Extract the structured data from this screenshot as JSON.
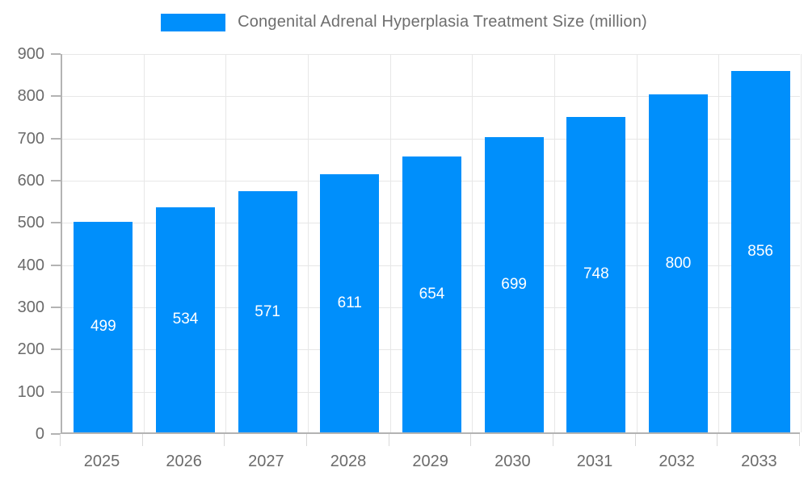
{
  "legend": {
    "label": "Congenital Adrenal Hyperplasia Treatment Size (million)"
  },
  "chart_data": {
    "type": "bar",
    "title": "Congenital Adrenal Hyperplasia Treatment Size (million)",
    "categories": [
      "2025",
      "2026",
      "2027",
      "2028",
      "2029",
      "2030",
      "2031",
      "2032",
      "2033"
    ],
    "values": [
      499,
      534,
      571,
      611,
      654,
      699,
      748,
      800,
      856
    ],
    "xlabel": "",
    "ylabel": "",
    "ylim": [
      0,
      900
    ],
    "ytick_step": 100,
    "grid": true,
    "legend_position": "top",
    "bar_color": "#008FFB",
    "value_label_color": "#ffffff",
    "axis_text_color": "#6b6b6b"
  }
}
